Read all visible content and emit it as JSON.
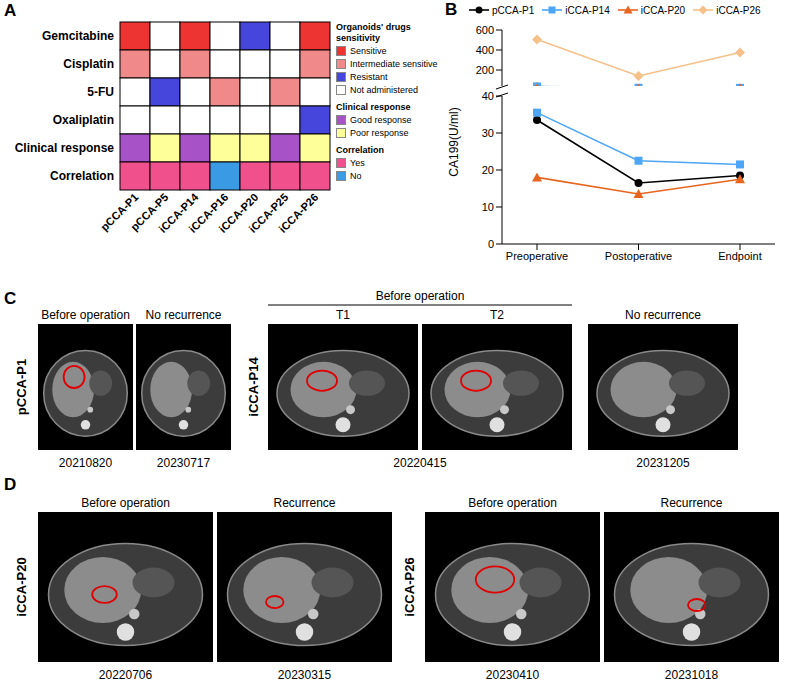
{
  "panel_a": {
    "letter": "A",
    "rows": [
      "Gemcitabine",
      "Cisplatin",
      "5-FU",
      "Oxaliplatin",
      "Clinical response",
      "Correlation"
    ],
    "columns": [
      "pCCA-P1",
      "pCCA-P5",
      "iCCA-P14",
      "iCCA-P16",
      "iCCA-P20",
      "iCCA-P25",
      "iCCA-P26"
    ],
    "cells": [
      [
        "Sensitive",
        "Not administered",
        "Sensitive",
        "Not administered",
        "Resistant",
        "Not administered",
        "Sensitive"
      ],
      [
        "Intermediate sensitive",
        "Not administered",
        "Intermediate sensitive",
        "Not administered",
        "Not administered",
        "Not administered",
        "Intermediate sensitive"
      ],
      [
        "Not administered",
        "Resistant",
        "Not administered",
        "Intermediate sensitive",
        "Not administered",
        "Intermediate sensitive",
        "Not administered"
      ],
      [
        "Not administered",
        "Not administered",
        "Not administered",
        "Not administered",
        "Not administered",
        "Not administered",
        "Resistant"
      ],
      [
        "Good response",
        "Poor response",
        "Good response",
        "Poor response",
        "Poor response",
        "Good response",
        "Poor response"
      ],
      [
        "Yes",
        "Yes",
        "Yes",
        "No",
        "Yes",
        "Yes",
        "Yes"
      ]
    ],
    "legend": [
      {
        "title": "Organoids' drugs sensitivity",
        "items": [
          {
            "label": "Sensitive",
            "color": "#ee3333"
          },
          {
            "label": "Intermediate sensitive",
            "color": "#f08a8a"
          },
          {
            "label": "Resistant",
            "color": "#4646dc"
          },
          {
            "label": "Not administered",
            "color": "#ffffff"
          }
        ]
      },
      {
        "title": "Clinical response",
        "items": [
          {
            "label": "Good response",
            "color": "#a852c8"
          },
          {
            "label": "Poor response",
            "color": "#ffff99"
          }
        ]
      },
      {
        "title": "Correlation",
        "items": [
          {
            "label": "Yes",
            "color": "#f0508c"
          },
          {
            "label": "No",
            "color": "#3a9be4"
          }
        ]
      }
    ]
  },
  "chart_data": {
    "panel": "B",
    "type": "line",
    "categories": [
      "Preoperative",
      "Postoperative",
      "Endpoint"
    ],
    "y_label": "CA199(U/ml)",
    "ylim": [
      0,
      600
    ],
    "yticks": [
      0,
      10,
      20,
      30,
      40,
      200,
      400,
      600
    ],
    "axis_break": 40,
    "legend": "top",
    "series": [
      {
        "name": "pCCA-P1",
        "color": "#000000",
        "marker": "circle",
        "values": [
          33.5,
          16.5,
          18.5
        ]
      },
      {
        "name": "iCCA-P14",
        "color": "#4da6f5",
        "marker": "square",
        "values": [
          35.5,
          22.5,
          21.5
        ]
      },
      {
        "name": "iCCA-P20",
        "color": "#e8651f",
        "marker": "triangle",
        "values": [
          18,
          13.5,
          17.5
        ]
      },
      {
        "name": "iCCA-P26",
        "color": "#f5c08a",
        "marker": "diamond",
        "values": [
          505,
          140,
          375
        ]
      }
    ]
  },
  "panel_c": {
    "letter": "C",
    "groups": [
      {
        "label": "pCCA-P1",
        "columns": [
          {
            "header": "Before operation",
            "date": "20210820"
          },
          {
            "header": "No recurrence",
            "date": "20230717"
          }
        ]
      },
      {
        "label": "iCCA-P14",
        "columns": [
          {
            "header": "Before operation",
            "sub": [
              "T1",
              "T2"
            ],
            "date": "20220415"
          },
          {
            "header": "No recurrence",
            "date": "20231205"
          }
        ]
      }
    ]
  },
  "panel_d": {
    "letter": "D",
    "groups": [
      {
        "label": "iCCA-P20",
        "columns": [
          {
            "header": "Before operation",
            "date": "20220706"
          },
          {
            "header": "Recurrence",
            "date": "20230315"
          }
        ]
      },
      {
        "label": "iCCA-P26",
        "columns": [
          {
            "header": "Before operation",
            "date": "20230410"
          },
          {
            "header": "Recurrence",
            "date": "20231018"
          }
        ]
      }
    ]
  }
}
